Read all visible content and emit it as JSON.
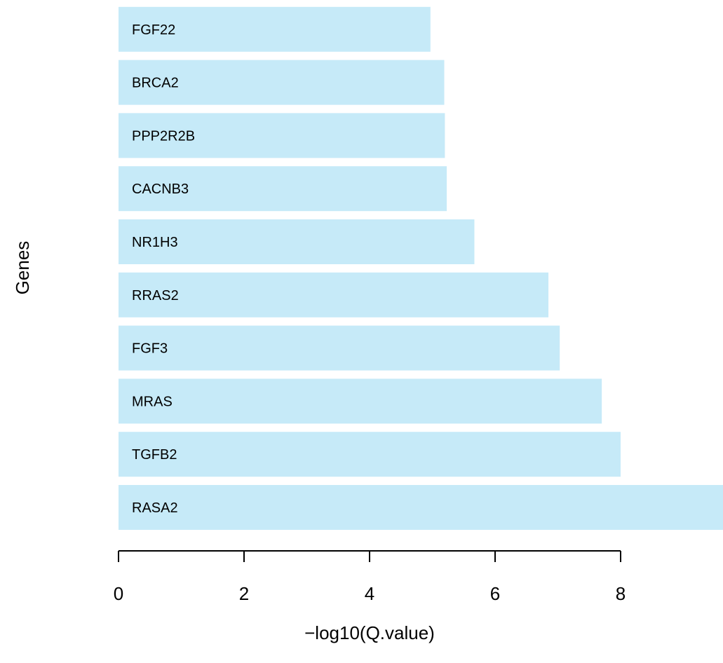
{
  "chart_data": {
    "type": "bar",
    "orientation": "horizontal",
    "categories": [
      "RASA2",
      "TGFB2",
      "MRAS",
      "FGF3",
      "RRAS2",
      "NR1H3",
      "CACNB3",
      "PPP2R2B",
      "BRCA2",
      "FGF22"
    ],
    "values": [
      10.2,
      8.0,
      7.7,
      7.03,
      6.85,
      5.67,
      5.23,
      5.2,
      5.19,
      4.97
    ],
    "title": "",
    "xlabel": "−log10(Q.value)",
    "ylabel": "Genes",
    "xticks": [
      0,
      2,
      4,
      6,
      8
    ],
    "xlim": [
      0,
      10.2
    ],
    "bar_color": "#c6eaf8",
    "grid": false,
    "legend": "none"
  }
}
